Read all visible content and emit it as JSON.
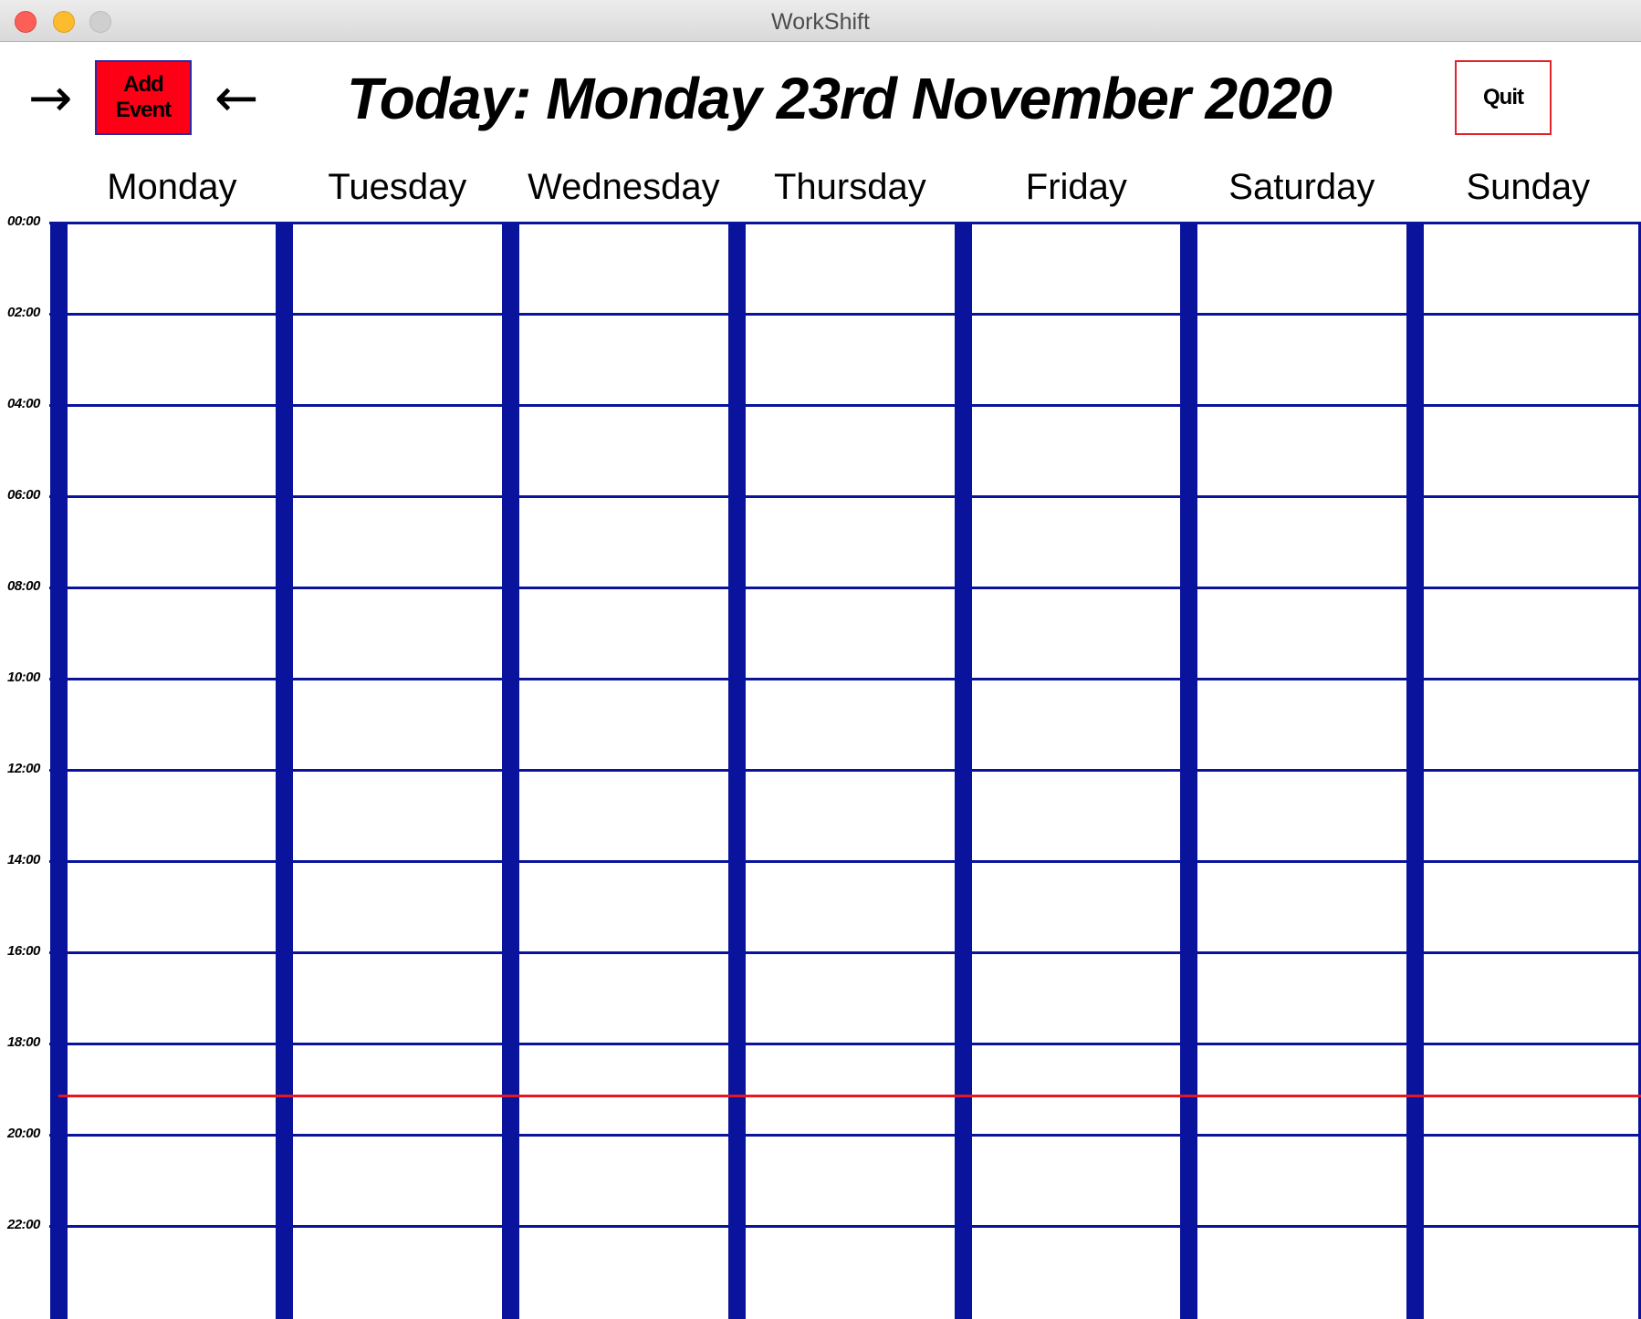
{
  "window": {
    "title": "WorkShift"
  },
  "toolbar": {
    "next_icon": "→",
    "prev_icon": "←",
    "add_event_line1": "Add",
    "add_event_line2": "Event",
    "title": "Today: Monday 23rd November 2020",
    "quit_label": "Quit"
  },
  "days": [
    "Monday",
    "Tuesday",
    "Wednesday",
    "Thursday",
    "Friday",
    "Saturday",
    "Sunday"
  ],
  "hours": [
    "00:00",
    "02:00",
    "04:00",
    "06:00",
    "08:00",
    "10:00",
    "12:00",
    "14:00",
    "16:00",
    "18:00",
    "20:00",
    "22:00"
  ],
  "colors": {
    "grid": "#0a139c",
    "current_time": "#e8161f",
    "add_event_bg": "#fd0015",
    "quit_border": "#e2232c"
  }
}
